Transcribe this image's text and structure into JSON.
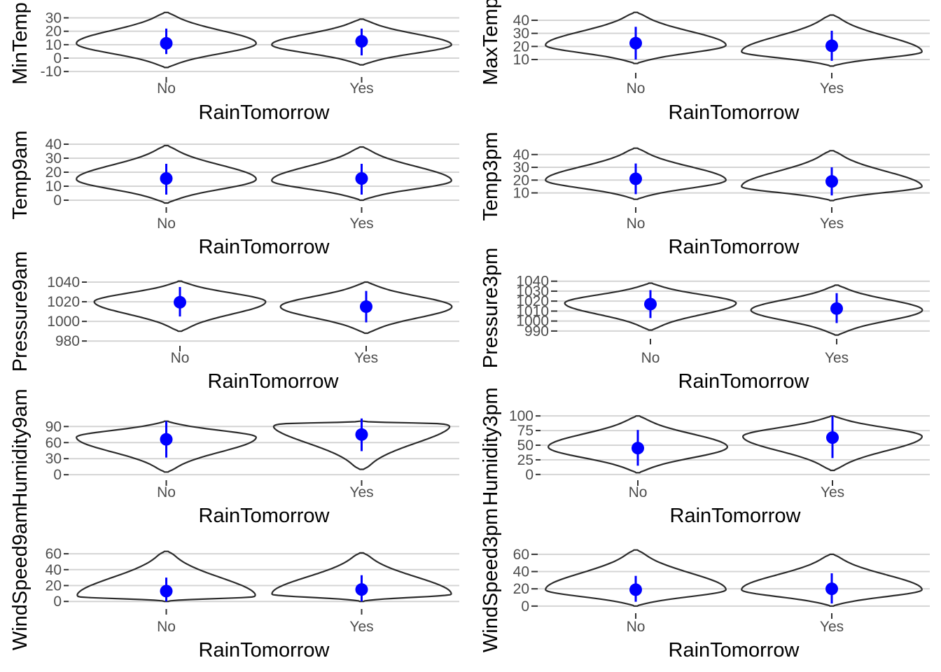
{
  "colors": {
    "point": "#0000ff",
    "violin": "#2b2b2b",
    "grid": "#d4d4d4",
    "background": "#ffffff"
  },
  "chart_data": [
    {
      "type": "violin",
      "xlabel": "RainTomorrow",
      "ylabel": "MinTemp",
      "ylim": [
        -12,
        36
      ],
      "yticks": [
        -10,
        0,
        10,
        20,
        30
      ],
      "ytick_labels": [
        "-10",
        "0",
        "10",
        "20",
        "30"
      ],
      "grid": true,
      "categories": [
        "No",
        "Yes"
      ],
      "groups": [
        {
          "category": "No",
          "min": -7,
          "max": 34,
          "mode": 11,
          "mean": 11,
          "sd_low": 3,
          "sd_high": 22
        },
        {
          "category": "Yes",
          "min": -5,
          "max": 29,
          "mode": 10,
          "mean": 12.5,
          "sd_low": 2,
          "sd_high": 22
        }
      ]
    },
    {
      "type": "violin",
      "xlabel": "RainTomorrow",
      "ylabel": "MaxTemp",
      "ylim": [
        2,
        48
      ],
      "yticks": [
        10,
        20,
        30,
        40
      ],
      "ytick_labels": [
        "10",
        "20",
        "30",
        "40"
      ],
      "grid": true,
      "categories": [
        "No",
        "Yes"
      ],
      "groups": [
        {
          "category": "No",
          "min": 7,
          "max": 46,
          "mode": 21,
          "mean": 22.5,
          "sd_low": 10,
          "sd_high": 35
        },
        {
          "category": "Yes",
          "min": 5,
          "max": 44,
          "mode": 16,
          "mean": 20.5,
          "sd_low": 9,
          "sd_high": 32
        }
      ]
    },
    {
      "type": "violin",
      "xlabel": "RainTomorrow",
      "ylabel": "Temp9am",
      "ylim": [
        -3,
        41
      ],
      "yticks": [
        0,
        10,
        20,
        30,
        40
      ],
      "ytick_labels": [
        "0",
        "10",
        "20",
        "30",
        "40"
      ],
      "grid": true,
      "categories": [
        "No",
        "Yes"
      ],
      "groups": [
        {
          "category": "No",
          "min": -2,
          "max": 39,
          "mode": 15,
          "mean": 15.5,
          "sd_low": 4,
          "sd_high": 26
        },
        {
          "category": "Yes",
          "min": 0,
          "max": 38,
          "mode": 14,
          "mean": 15.5,
          "sd_low": 4,
          "sd_high": 26
        }
      ]
    },
    {
      "type": "violin",
      "xlabel": "RainTomorrow",
      "ylabel": "Temp3pm",
      "ylim": [
        1,
        47
      ],
      "yticks": [
        10,
        20,
        30,
        40
      ],
      "ytick_labels": [
        "10",
        "20",
        "30",
        "40"
      ],
      "grid": true,
      "categories": [
        "No",
        "Yes"
      ],
      "groups": [
        {
          "category": "No",
          "min": 5,
          "max": 45,
          "mode": 20,
          "mean": 21,
          "sd_low": 9,
          "sd_high": 33
        },
        {
          "category": "Yes",
          "min": 4,
          "max": 43,
          "mode": 15,
          "mean": 19,
          "sd_low": 8,
          "sd_high": 30
        }
      ]
    },
    {
      "type": "violin",
      "xlabel": "RainTomorrow",
      "ylabel": "Pressure9am",
      "ylim": [
        978,
        1045
      ],
      "yticks": [
        980,
        1000,
        1020,
        1040
      ],
      "ytick_labels": [
        "980",
        "1000",
        "1020",
        "1040"
      ],
      "grid": true,
      "categories": [
        "No",
        "Yes"
      ],
      "groups": [
        {
          "category": "No",
          "min": 990,
          "max": 1041,
          "mode": 1020,
          "mean": 1019.5,
          "sd_low": 1005,
          "sd_high": 1035
        },
        {
          "category": "Yes",
          "min": 988,
          "max": 1040,
          "mode": 1015,
          "mean": 1015,
          "sd_low": 999,
          "sd_high": 1031
        }
      ]
    },
    {
      "type": "violin",
      "xlabel": "RainTomorrow",
      "ylabel": "Pressure3pm",
      "ylim": [
        985,
        1044
      ],
      "yticks": [
        990,
        1000,
        1010,
        1020,
        1030,
        1040
      ],
      "ytick_labels": [
        "990",
        "1000",
        "1010",
        "1020",
        "1030",
        "1040"
      ],
      "grid": true,
      "categories": [
        "No",
        "Yes"
      ],
      "groups": [
        {
          "category": "No",
          "min": 991,
          "max": 1038,
          "mode": 1018,
          "mean": 1017,
          "sd_low": 1003,
          "sd_high": 1031
        },
        {
          "category": "Yes",
          "min": 986,
          "max": 1036,
          "mode": 1011,
          "mean": 1012.5,
          "sd_low": 998,
          "sd_high": 1028
        }
      ]
    },
    {
      "type": "violin",
      "xlabel": "RainTomorrow",
      "ylabel": "Humidity9am",
      "ylim": [
        -5,
        110
      ],
      "yticks": [
        0,
        30,
        60,
        90
      ],
      "ytick_labels": [
        "0",
        "30",
        "60",
        "90"
      ],
      "grid": true,
      "categories": [
        "No",
        "Yes"
      ],
      "groups": [
        {
          "category": "No",
          "min": 5,
          "max": 100,
          "mode": 70,
          "mean": 66,
          "sd_low": 32,
          "sd_high": 100
        },
        {
          "category": "Yes",
          "min": 10,
          "max": 100,
          "mode": 95,
          "mean": 75,
          "sd_low": 44,
          "sd_high": 105
        }
      ]
    },
    {
      "type": "violin",
      "xlabel": "RainTomorrow",
      "ylabel": "Humidity3pm",
      "ylim": [
        -5,
        105
      ],
      "yticks": [
        0,
        25,
        50,
        75,
        100
      ],
      "ytick_labels": [
        "0",
        "25",
        "50",
        "75",
        "100"
      ],
      "grid": true,
      "categories": [
        "No",
        "Yes"
      ],
      "groups": [
        {
          "category": "No",
          "min": 3,
          "max": 100,
          "mode": 47,
          "mean": 45,
          "sd_low": 15,
          "sd_high": 76
        },
        {
          "category": "Yes",
          "min": 7,
          "max": 100,
          "mode": 65,
          "mean": 63,
          "sd_low": 28,
          "sd_high": 100
        }
      ]
    },
    {
      "type": "violin",
      "xlabel": "RainTomorrow",
      "ylabel": "WindSpeed9am",
      "ylim": [
        -6,
        68
      ],
      "yticks": [
        0,
        20,
        40,
        60
      ],
      "ytick_labels": [
        "0",
        "20",
        "40",
        "60"
      ],
      "grid": true,
      "categories": [
        "No",
        "Yes"
      ],
      "groups": [
        {
          "category": "No",
          "min": 0,
          "max": 63,
          "mode": 6,
          "mean": 13,
          "sd_low": 0,
          "sd_high": 30
        },
        {
          "category": "Yes",
          "min": 0,
          "max": 61,
          "mode": 9,
          "mean": 15,
          "sd_low": 0,
          "sd_high": 33
        }
      ]
    },
    {
      "type": "violin",
      "xlabel": "RainTomorrow",
      "ylabel": "WindSpeed3pm",
      "ylim": [
        -5,
        68
      ],
      "yticks": [
        0,
        20,
        40,
        60
      ],
      "ytick_labels": [
        "0",
        "20",
        "40",
        "60"
      ],
      "grid": true,
      "categories": [
        "No",
        "Yes"
      ],
      "groups": [
        {
          "category": "No",
          "min": 0,
          "max": 65,
          "mode": 19,
          "mean": 19,
          "sd_low": 5,
          "sd_high": 35
        },
        {
          "category": "Yes",
          "min": 0,
          "max": 60,
          "mode": 19,
          "mean": 20,
          "sd_low": 3,
          "sd_high": 38
        }
      ]
    }
  ]
}
